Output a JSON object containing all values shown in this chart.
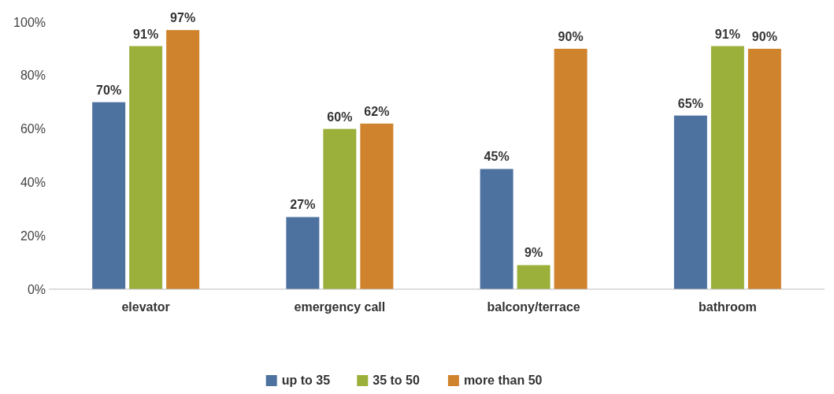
{
  "chart_data": {
    "type": "bar",
    "categories": [
      "elevator",
      "emergency call",
      "balcony/terrace",
      "bathroom"
    ],
    "series": [
      {
        "name": "up to 35",
        "color": "#4e72a0",
        "values": [
          70,
          27,
          45,
          65
        ],
        "value_labels": [
          "70%",
          "27%",
          "45%",
          "65%"
        ]
      },
      {
        "name": "35 to 50",
        "color": "#9bb03a",
        "values": [
          91,
          60,
          9,
          91
        ],
        "value_labels": [
          "91%",
          "60%",
          "9%",
          "91%"
        ]
      },
      {
        "name": "more than 50",
        "color": "#d0832d",
        "values": [
          97,
          62,
          90,
          90
        ],
        "value_labels": [
          "97%",
          "62%",
          "90%",
          "90%"
        ]
      }
    ],
    "ylim": [
      0,
      100
    ],
    "yticks": [
      {
        "value": 0,
        "label": "0%"
      },
      {
        "value": 20,
        "label": "20%"
      },
      {
        "value": 40,
        "label": "40%"
      },
      {
        "value": 60,
        "label": "60%"
      },
      {
        "value": 80,
        "label": "80%"
      },
      {
        "value": 100,
        "label": "100%"
      }
    ],
    "grid": false,
    "legend": "bottom"
  }
}
